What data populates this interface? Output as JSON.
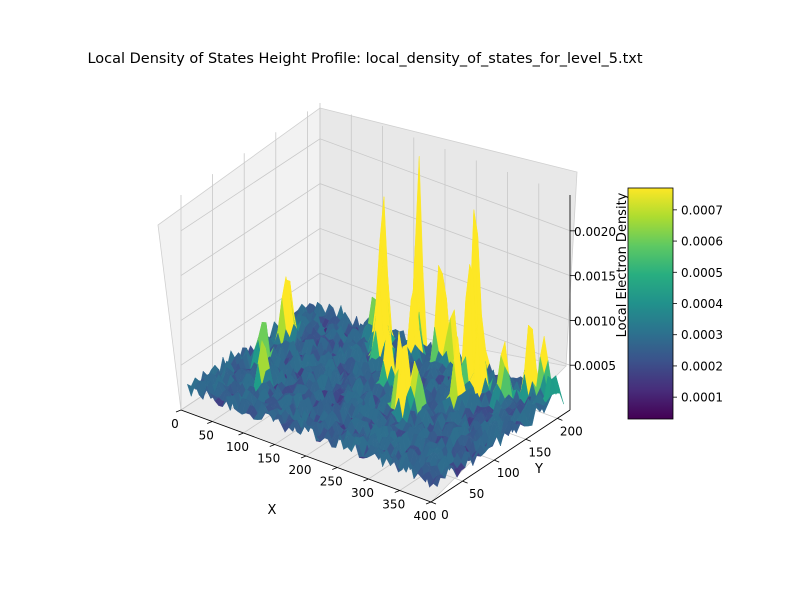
{
  "chart_data": {
    "type": "surface3d",
    "title": "Local Density of States Height Profile: local_density_of_states_for_level_5.txt",
    "xlabel": "X",
    "ylabel": "Y",
    "zlabel": "Local Electron Density",
    "x_ticks": [
      "0",
      "50",
      "100",
      "150",
      "200",
      "250",
      "300",
      "350",
      "400"
    ],
    "y_ticks": [
      "0",
      "50",
      "100",
      "150",
      "200"
    ],
    "z_ticks": [
      "0.0005",
      "0.0010",
      "0.0015",
      "0.0020"
    ],
    "xlim": [
      0,
      400
    ],
    "ylim": [
      0,
      220
    ],
    "zlim": [
      0,
      0.0024
    ],
    "colorbar": {
      "colormap": "viridis",
      "range": [
        3e-05,
        0.00077
      ],
      "ticks": [
        "0.0001",
        "0.0002",
        "0.0003",
        "0.0004",
        "0.0005",
        "0.0006",
        "0.0007"
      ]
    },
    "peaks": [
      {
        "x": 20,
        "y": 150,
        "z": 0.00075
      },
      {
        "x": 25,
        "y": 140,
        "z": 0.0007
      },
      {
        "x": 30,
        "y": 100,
        "z": 0.00045
      },
      {
        "x": 70,
        "y": 60,
        "z": 0.0005
      },
      {
        "x": 110,
        "y": 200,
        "z": 0.00065
      },
      {
        "x": 130,
        "y": 190,
        "z": 0.0018
      },
      {
        "x": 140,
        "y": 180,
        "z": 0.0015
      },
      {
        "x": 150,
        "y": 170,
        "z": 0.0011
      },
      {
        "x": 170,
        "y": 210,
        "z": 0.0023
      },
      {
        "x": 180,
        "y": 190,
        "z": 0.0009
      },
      {
        "x": 200,
        "y": 130,
        "z": 0.00065
      },
      {
        "x": 215,
        "y": 200,
        "z": 0.0014
      },
      {
        "x": 230,
        "y": 200,
        "z": 0.0007
      },
      {
        "x": 245,
        "y": 105,
        "z": 0.0008
      },
      {
        "x": 255,
        "y": 100,
        "z": 0.00095
      },
      {
        "x": 265,
        "y": 110,
        "z": 0.0007
      },
      {
        "x": 270,
        "y": 200,
        "z": 0.0021
      },
      {
        "x": 285,
        "y": 175,
        "z": 0.0018
      },
      {
        "x": 300,
        "y": 140,
        "z": 0.00075
      },
      {
        "x": 305,
        "y": 170,
        "z": 0.001
      },
      {
        "x": 340,
        "y": 175,
        "z": 0.0008
      },
      {
        "x": 355,
        "y": 200,
        "z": 0.001
      },
      {
        "x": 370,
        "y": 210,
        "z": 0.0007
      },
      {
        "x": 390,
        "y": 200,
        "z": 0.00045
      }
    ]
  }
}
